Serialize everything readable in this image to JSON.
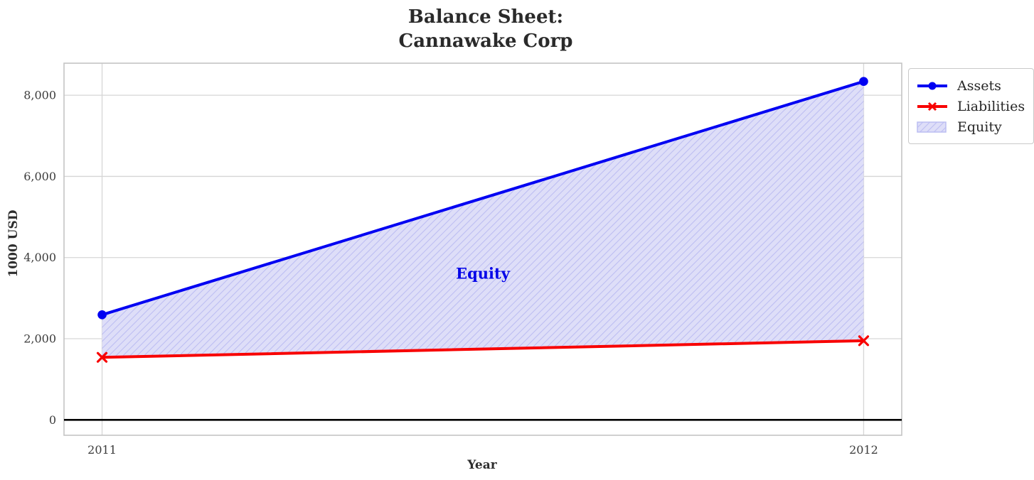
{
  "chart_data": {
    "type": "area",
    "title_line1": "Balance Sheet:",
    "title_line2": "Cannawake Corp",
    "xlabel": "Year",
    "ylabel": "1000 USD",
    "x": [
      2011,
      2012
    ],
    "xlim": [
      2010.95,
      2012.05
    ],
    "ylim": [
      -380,
      8790
    ],
    "grid": true,
    "series": [
      {
        "name": "Assets",
        "type": "line",
        "color": "#0000f2",
        "marker": "circle",
        "line_width": 4,
        "values": [
          2590,
          8340
        ]
      },
      {
        "name": "Liabilities",
        "type": "line",
        "color": "#f80000",
        "marker": "x",
        "line_width": 4,
        "values": [
          1540,
          1950
        ]
      },
      {
        "name": "Equity",
        "type": "fill-between",
        "between": [
          "Liabilities",
          "Assets"
        ],
        "hatch": "//",
        "fill_color": "#dedef8",
        "hatch_color": "#bcbdf2",
        "derived_values": [
          1050,
          6390
        ]
      }
    ],
    "annotation": {
      "text": "Equity",
      "x": 2011.5,
      "y": 3600,
      "color": "#0404e8"
    },
    "xticks": {
      "values": [
        2011,
        2012
      ],
      "labels": [
        "2011",
        "2012"
      ]
    },
    "yticks": {
      "values": [
        0,
        2000,
        4000,
        6000,
        8000
      ],
      "labels": [
        "0",
        "2,000",
        "4,000",
        "6,000",
        "8,000"
      ]
    },
    "zero_line_color": "#000000",
    "grid_color": "#d6d6d6",
    "spine_color": "#c4c4c4",
    "tick_label_color": "#3c3c3c",
    "legend": {
      "position": "outside-upper-right",
      "items": [
        {
          "label": "Assets",
          "swatch": "line-circle"
        },
        {
          "label": "Liabilities",
          "swatch": "line-x"
        },
        {
          "label": "Equity",
          "swatch": "hatch-patch"
        }
      ]
    }
  }
}
